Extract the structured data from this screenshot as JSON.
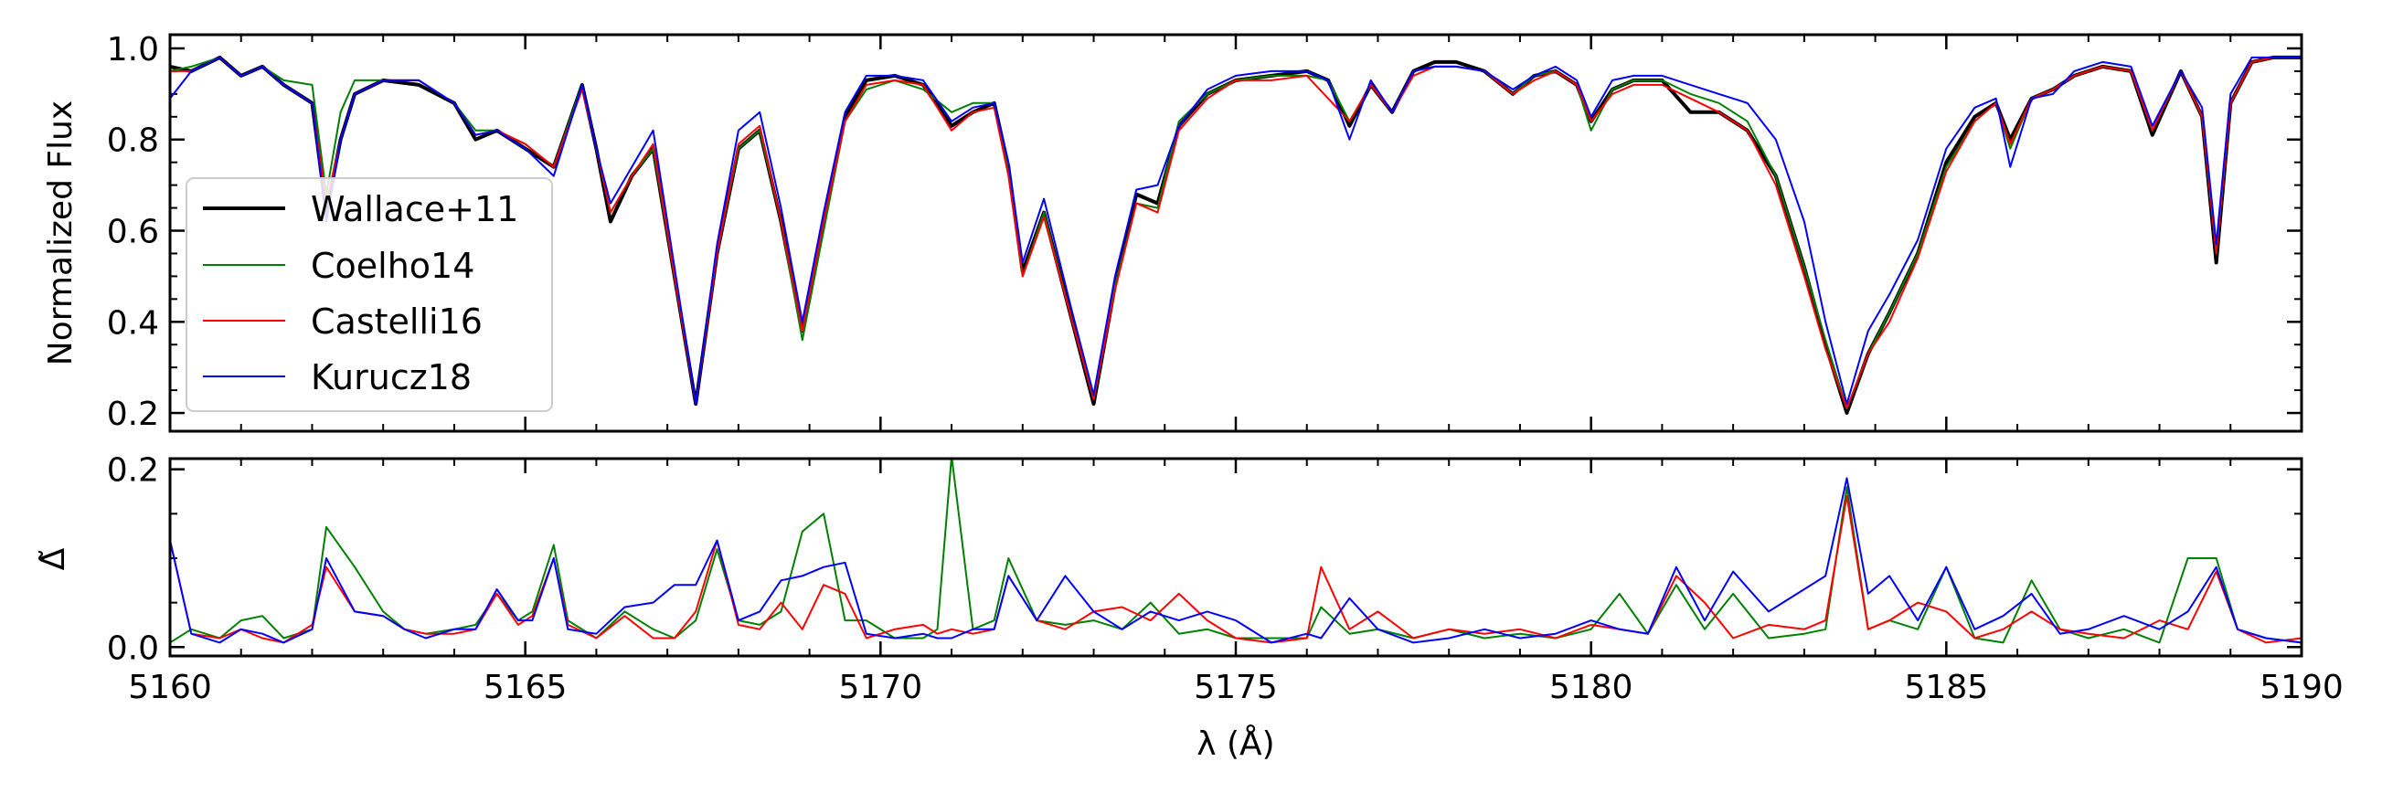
{
  "chart_data": [
    {
      "type": "line",
      "panel": "top",
      "xlabel": "",
      "ylabel": "Normalized Flux",
      "xlim": [
        5160,
        5190
      ],
      "ylim": [
        0.16,
        1.03
      ],
      "x_ticks": [
        5160,
        5165,
        5170,
        5175,
        5180,
        5185,
        5190
      ],
      "x_tick_labels": [
        "",
        "",
        "",
        "",
        "",
        "",
        ""
      ],
      "y_ticks": [
        0.2,
        0.4,
        0.6,
        0.8,
        1.0
      ],
      "y_tick_labels": [
        "0.2",
        "0.4",
        "0.6",
        "0.8",
        "1.0"
      ],
      "legend_position": "center-left",
      "x": [
        5160.0,
        5160.3,
        5160.7,
        5161.0,
        5161.3,
        5161.6,
        5162.0,
        5162.2,
        5162.4,
        5162.6,
        5163.0,
        5163.5,
        5164.0,
        5164.3,
        5164.6,
        5165.0,
        5165.4,
        5165.8,
        5166.0,
        5166.2,
        5166.5,
        5166.8,
        5167.1,
        5167.4,
        5167.7,
        5168.0,
        5168.3,
        5168.6,
        5168.9,
        5169.2,
        5169.5,
        5169.8,
        5170.2,
        5170.6,
        5171.0,
        5171.3,
        5171.6,
        5171.8,
        5172.0,
        5172.3,
        5172.7,
        5173.0,
        5173.3,
        5173.6,
        5173.9,
        5174.2,
        5174.6,
        5175.0,
        5175.5,
        5176.0,
        5176.3,
        5176.6,
        5176.9,
        5177.2,
        5177.5,
        5177.8,
        5178.1,
        5178.5,
        5178.9,
        5179.2,
        5179.5,
        5179.8,
        5180.0,
        5180.3,
        5180.6,
        5181.0,
        5181.4,
        5181.8,
        5182.2,
        5182.6,
        5183.0,
        5183.3,
        5183.6,
        5183.9,
        5184.2,
        5184.6,
        5185.0,
        5185.4,
        5185.7,
        5185.9,
        5186.2,
        5186.5,
        5186.8,
        5187.2,
        5187.6,
        5187.9,
        5188.3,
        5188.6,
        5188.8,
        5189.0,
        5189.3,
        5189.6,
        5190.0
      ],
      "series": [
        {
          "name": "Wallace+11",
          "color": "#000000",
          "values": [
            0.96,
            0.95,
            0.98,
            0.94,
            0.96,
            0.92,
            0.88,
            0.64,
            0.8,
            0.9,
            0.93,
            0.92,
            0.88,
            0.8,
            0.82,
            0.78,
            0.74,
            0.92,
            0.78,
            0.62,
            0.72,
            0.78,
            0.5,
            0.22,
            0.55,
            0.78,
            0.82,
            0.62,
            0.38,
            0.62,
            0.85,
            0.93,
            0.94,
            0.92,
            0.83,
            0.86,
            0.88,
            0.74,
            0.51,
            0.64,
            0.4,
            0.22,
            0.48,
            0.68,
            0.66,
            0.83,
            0.9,
            0.93,
            0.94,
            0.95,
            0.93,
            0.83,
            0.92,
            0.86,
            0.95,
            0.97,
            0.97,
            0.95,
            0.9,
            0.94,
            0.95,
            0.92,
            0.84,
            0.91,
            0.93,
            0.93,
            0.86,
            0.86,
            0.82,
            0.72,
            0.52,
            0.35,
            0.2,
            0.33,
            0.42,
            0.55,
            0.75,
            0.85,
            0.88,
            0.8,
            0.89,
            0.91,
            0.94,
            0.96,
            0.95,
            0.81,
            0.95,
            0.85,
            0.53,
            0.88,
            0.97,
            0.98,
            0.98
          ]
        },
        {
          "name": "Coelho14",
          "color": "#008000",
          "values": [
            0.95,
            0.96,
            0.98,
            0.94,
            0.96,
            0.93,
            0.92,
            0.68,
            0.86,
            0.93,
            0.93,
            0.93,
            0.88,
            0.82,
            0.82,
            0.79,
            0.74,
            0.92,
            0.78,
            0.64,
            0.72,
            0.78,
            0.5,
            0.22,
            0.55,
            0.78,
            0.82,
            0.62,
            0.36,
            0.6,
            0.84,
            0.91,
            0.93,
            0.91,
            0.86,
            0.88,
            0.88,
            0.74,
            0.5,
            0.64,
            0.4,
            0.23,
            0.48,
            0.66,
            0.65,
            0.84,
            0.9,
            0.93,
            0.94,
            0.94,
            0.93,
            0.84,
            0.92,
            0.86,
            0.95,
            0.96,
            0.96,
            0.95,
            0.9,
            0.94,
            0.95,
            0.92,
            0.82,
            0.91,
            0.93,
            0.93,
            0.9,
            0.88,
            0.84,
            0.72,
            0.52,
            0.36,
            0.21,
            0.33,
            0.42,
            0.55,
            0.74,
            0.84,
            0.88,
            0.78,
            0.89,
            0.91,
            0.94,
            0.96,
            0.95,
            0.82,
            0.95,
            0.85,
            0.55,
            0.88,
            0.97,
            0.98,
            0.98
          ]
        },
        {
          "name": "Castelli16",
          "color": "#ff0000",
          "values": [
            0.95,
            0.95,
            0.98,
            0.94,
            0.96,
            0.92,
            0.88,
            0.66,
            0.8,
            0.9,
            0.93,
            0.93,
            0.88,
            0.81,
            0.82,
            0.79,
            0.74,
            0.91,
            0.78,
            0.64,
            0.72,
            0.79,
            0.5,
            0.22,
            0.55,
            0.79,
            0.83,
            0.62,
            0.38,
            0.62,
            0.84,
            0.92,
            0.93,
            0.92,
            0.82,
            0.86,
            0.87,
            0.72,
            0.5,
            0.63,
            0.4,
            0.23,
            0.47,
            0.66,
            0.64,
            0.82,
            0.89,
            0.93,
            0.93,
            0.94,
            0.89,
            0.84,
            0.92,
            0.86,
            0.94,
            0.96,
            0.96,
            0.95,
            0.9,
            0.93,
            0.95,
            0.92,
            0.84,
            0.9,
            0.92,
            0.92,
            0.89,
            0.86,
            0.82,
            0.7,
            0.5,
            0.34,
            0.21,
            0.33,
            0.4,
            0.54,
            0.73,
            0.84,
            0.88,
            0.79,
            0.89,
            0.91,
            0.94,
            0.96,
            0.95,
            0.82,
            0.95,
            0.85,
            0.55,
            0.88,
            0.97,
            0.98,
            0.98
          ]
        },
        {
          "name": "Kurucz18",
          "color": "#0000ff",
          "values": [
            0.89,
            0.95,
            0.98,
            0.94,
            0.96,
            0.92,
            0.88,
            0.62,
            0.8,
            0.9,
            0.93,
            0.93,
            0.88,
            0.81,
            0.82,
            0.78,
            0.72,
            0.92,
            0.78,
            0.66,
            0.74,
            0.82,
            0.52,
            0.22,
            0.57,
            0.82,
            0.86,
            0.65,
            0.4,
            0.64,
            0.86,
            0.94,
            0.94,
            0.93,
            0.84,
            0.87,
            0.88,
            0.75,
            0.53,
            0.67,
            0.42,
            0.24,
            0.5,
            0.69,
            0.7,
            0.83,
            0.91,
            0.94,
            0.95,
            0.95,
            0.93,
            0.8,
            0.93,
            0.86,
            0.95,
            0.96,
            0.96,
            0.95,
            0.91,
            0.94,
            0.96,
            0.93,
            0.85,
            0.93,
            0.94,
            0.94,
            0.92,
            0.9,
            0.88,
            0.8,
            0.62,
            0.4,
            0.22,
            0.38,
            0.46,
            0.58,
            0.78,
            0.87,
            0.89,
            0.74,
            0.89,
            0.9,
            0.95,
            0.97,
            0.96,
            0.83,
            0.95,
            0.87,
            0.57,
            0.9,
            0.98,
            0.98,
            0.98
          ]
        }
      ]
    },
    {
      "type": "line",
      "panel": "bottom",
      "xlabel": "λ (Å)",
      "ylabel": "Δ̃",
      "xlim": [
        5160,
        5190
      ],
      "ylim": [
        -0.01,
        0.212
      ],
      "x_ticks": [
        5160,
        5165,
        5170,
        5175,
        5180,
        5185,
        5190
      ],
      "x_tick_labels": [
        "5160",
        "5165",
        "5170",
        "5175",
        "5180",
        "5185",
        "5190"
      ],
      "y_ticks": [
        0.0,
        0.2
      ],
      "y_tick_labels": [
        "0.0",
        "0.2"
      ],
      "x": [
        5160.0,
        5160.3,
        5160.7,
        5161.0,
        5161.3,
        5161.6,
        5162.0,
        5162.2,
        5162.6,
        5163.0,
        5163.3,
        5163.6,
        5164.0,
        5164.3,
        5164.6,
        5164.9,
        5165.1,
        5165.4,
        5165.6,
        5166.0,
        5166.4,
        5166.8,
        5167.1,
        5167.4,
        5167.7,
        5168.0,
        5168.3,
        5168.6,
        5168.9,
        5169.2,
        5169.5,
        5169.8,
        5170.2,
        5170.6,
        5170.8,
        5171.0,
        5171.3,
        5171.6,
        5171.8,
        5172.2,
        5172.6,
        5173.0,
        5173.4,
        5173.8,
        5174.2,
        5174.6,
        5175.0,
        5175.5,
        5176.0,
        5176.2,
        5176.6,
        5177.0,
        5177.5,
        5178.0,
        5178.5,
        5179.0,
        5179.5,
        5180.0,
        5180.4,
        5180.8,
        5181.2,
        5181.6,
        5182.0,
        5182.5,
        5183.0,
        5183.3,
        5183.6,
        5183.9,
        5184.2,
        5184.6,
        5185.0,
        5185.4,
        5185.8,
        5186.2,
        5186.6,
        5187.0,
        5187.5,
        5188.0,
        5188.4,
        5188.8,
        5189.1,
        5189.5,
        5190.0
      ],
      "series": [
        {
          "name": "Coelho14",
          "color": "#008000",
          "values": [
            0.005,
            0.02,
            0.01,
            0.03,
            0.035,
            0.01,
            0.02,
            0.135,
            0.09,
            0.04,
            0.02,
            0.015,
            0.02,
            0.025,
            0.06,
            0.03,
            0.04,
            0.115,
            0.03,
            0.01,
            0.04,
            0.02,
            0.01,
            0.03,
            0.11,
            0.03,
            0.025,
            0.04,
            0.13,
            0.15,
            0.03,
            0.03,
            0.01,
            0.01,
            0.02,
            0.215,
            0.02,
            0.03,
            0.1,
            0.03,
            0.025,
            0.03,
            0.02,
            0.05,
            0.015,
            0.02,
            0.01,
            0.01,
            0.01,
            0.045,
            0.015,
            0.02,
            0.01,
            0.02,
            0.01,
            0.015,
            0.01,
            0.02,
            0.06,
            0.015,
            0.07,
            0.02,
            0.06,
            0.01,
            0.015,
            0.02,
            0.18,
            0.02,
            0.03,
            0.02,
            0.09,
            0.01,
            0.005,
            0.075,
            0.02,
            0.01,
            0.02,
            0.005,
            0.1,
            0.1,
            0.02,
            0.01,
            0.005
          ]
        },
        {
          "name": "Castelli16",
          "color": "#ff0000",
          "values": [
            0.12,
            0.015,
            0.01,
            0.02,
            0.01,
            0.005,
            0.025,
            0.09,
            0.04,
            0.035,
            0.02,
            0.015,
            0.015,
            0.02,
            0.06,
            0.025,
            0.035,
            0.1,
            0.025,
            0.01,
            0.035,
            0.01,
            0.01,
            0.04,
            0.12,
            0.025,
            0.02,
            0.05,
            0.02,
            0.07,
            0.06,
            0.01,
            0.02,
            0.025,
            0.015,
            0.02,
            0.015,
            0.02,
            0.08,
            0.03,
            0.02,
            0.04,
            0.045,
            0.03,
            0.06,
            0.03,
            0.01,
            0.005,
            0.01,
            0.09,
            0.02,
            0.04,
            0.01,
            0.02,
            0.015,
            0.02,
            0.01,
            0.025,
            0.02,
            0.015,
            0.08,
            0.05,
            0.01,
            0.025,
            0.02,
            0.03,
            0.17,
            0.02,
            0.03,
            0.05,
            0.04,
            0.01,
            0.02,
            0.04,
            0.02,
            0.015,
            0.01,
            0.03,
            0.02,
            0.085,
            0.02,
            0.005,
            0.01
          ]
        },
        {
          "name": "Kurucz18",
          "color": "#0000ff",
          "values": [
            0.12,
            0.015,
            0.005,
            0.02,
            0.015,
            0.005,
            0.02,
            0.1,
            0.04,
            0.035,
            0.02,
            0.01,
            0.02,
            0.02,
            0.065,
            0.03,
            0.03,
            0.1,
            0.02,
            0.015,
            0.045,
            0.05,
            0.07,
            0.07,
            0.12,
            0.03,
            0.04,
            0.075,
            0.08,
            0.09,
            0.095,
            0.015,
            0.01,
            0.015,
            0.01,
            0.01,
            0.02,
            0.02,
            0.08,
            0.03,
            0.08,
            0.04,
            0.02,
            0.04,
            0.03,
            0.04,
            0.03,
            0.005,
            0.015,
            0.01,
            0.055,
            0.02,
            0.005,
            0.01,
            0.02,
            0.01,
            0.015,
            0.03,
            0.02,
            0.015,
            0.09,
            0.03,
            0.085,
            0.04,
            0.065,
            0.08,
            0.19,
            0.06,
            0.08,
            0.03,
            0.09,
            0.02,
            0.035,
            0.06,
            0.015,
            0.02,
            0.035,
            0.02,
            0.04,
            0.09,
            0.02,
            0.01,
            0.005
          ]
        }
      ]
    }
  ],
  "legend": {
    "entries": [
      {
        "label": "Wallace+11",
        "color": "#000000"
      },
      {
        "label": "Coelho14",
        "color": "#008000"
      },
      {
        "label": "Castelli16",
        "color": "#ff0000"
      },
      {
        "label": "Kurucz18",
        "color": "#0000ff"
      }
    ]
  }
}
